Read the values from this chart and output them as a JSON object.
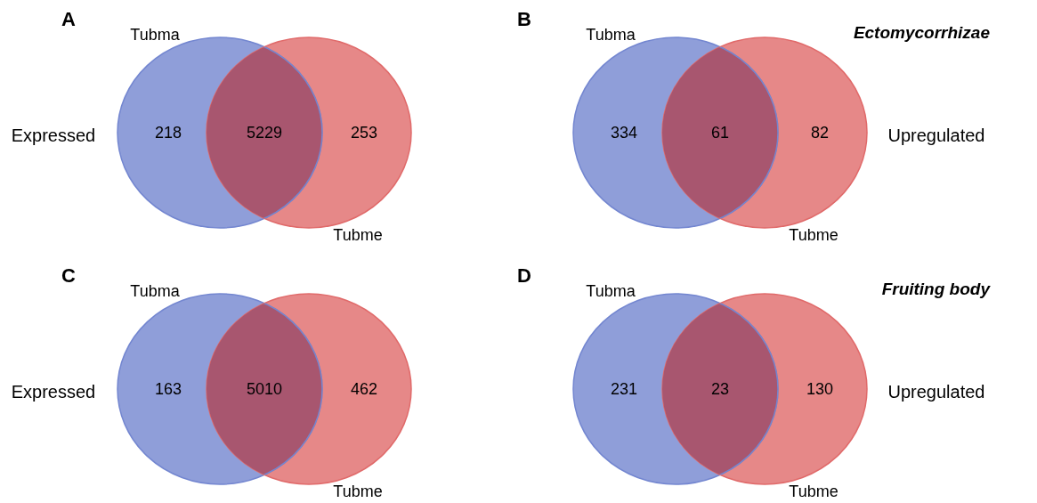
{
  "chart_data": [
    {
      "type": "other",
      "title": "A",
      "categories": [
        null,
        null,
        null
      ],
      "values": [
        218,
        5229,
        253
      ],
      "data_labels": true,
      "colors": [
        "#7386d0",
        "#a8566f",
        "#e06a6a"
      ],
      "annotations": [
        "Tubma",
        "Tubme"
      ],
      "ylabel": "Expressed"
    },
    {
      "type": "other",
      "title": "B",
      "subtitle": "Ectomycorrhizae",
      "categories": [
        null,
        null,
        null
      ],
      "values": [
        334,
        61,
        82
      ],
      "data_labels": true,
      "colors": [
        "#7386d0",
        "#a8566f",
        "#e06a6a"
      ],
      "annotations": [
        "Tubma",
        "Tubme"
      ],
      "y2label": "Upregulated"
    },
    {
      "type": "other",
      "title": "C",
      "categories": [
        null,
        null,
        null
      ],
      "values": [
        163,
        5010,
        462
      ],
      "data_labels": true,
      "colors": [
        "#7386d0",
        "#a8566f",
        "#e06a6a"
      ],
      "annotations": [
        "Tubma",
        "Tubme"
      ],
      "ylabel": "Expressed"
    },
    {
      "type": "other",
      "title": "D",
      "subtitle": "Fruiting body",
      "categories": [
        null,
        null,
        null
      ],
      "values": [
        231,
        23,
        130
      ],
      "data_labels": true,
      "colors": [
        "#7386d0",
        "#a8566f",
        "#e06a6a"
      ],
      "annotations": [
        "Tubma",
        "Tubme"
      ],
      "y2label": "Upregulated"
    }
  ]
}
